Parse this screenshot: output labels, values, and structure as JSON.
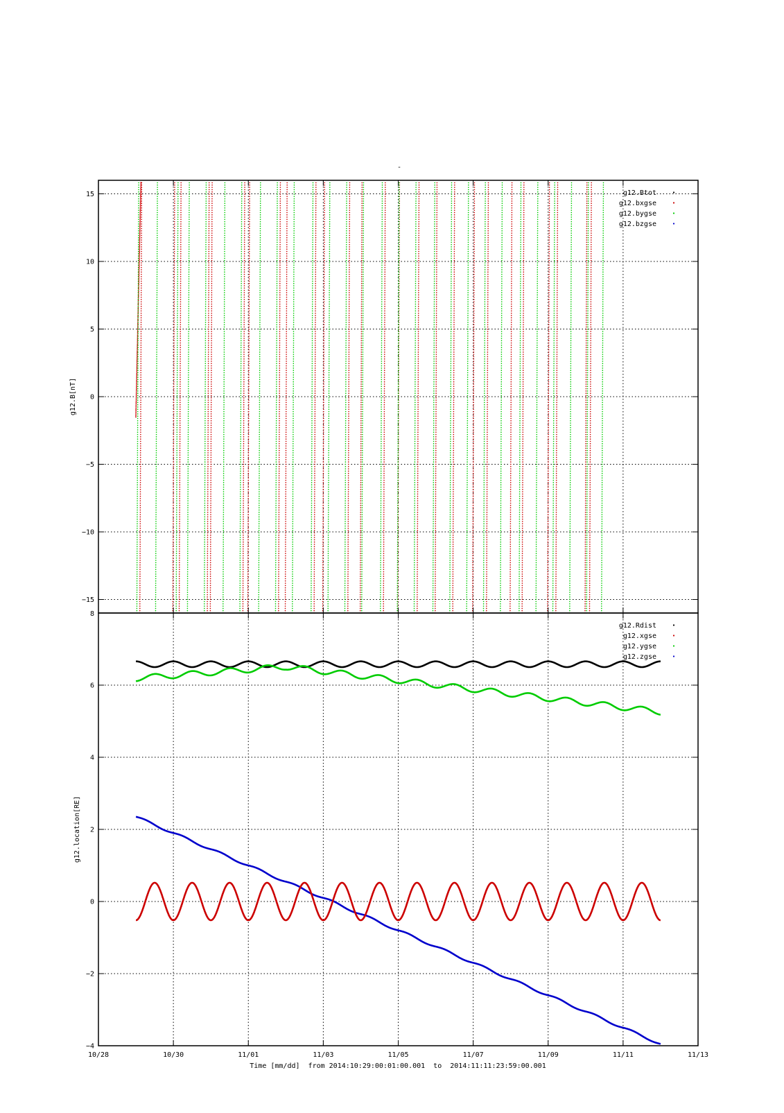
{
  "page": {
    "title": "-",
    "x_axis_caption": "Time [mm/dd]  from 2014:10:29:00:01:00.001  to  2014:11:11:23:59:00.001"
  },
  "chart_data": [
    {
      "type": "scatter",
      "ylabel": "g12.B[nT]",
      "xlabel": "",
      "ylim": [
        -16,
        16
      ],
      "yticks": [
        15,
        10,
        5,
        0,
        -5,
        -10,
        -15
      ],
      "ytick_labels": [
        "15",
        "10",
        "5",
        "0",
        "−5",
        "−10",
        "−15"
      ],
      "xlim": [
        "2014-10-28",
        "2014-11-13"
      ],
      "grid": true,
      "legend_position": "top-right",
      "series": [
        {
          "name": "g12.Btot",
          "color": "#000000"
        },
        {
          "name": "g12.bxgse",
          "color": "#cc0000"
        },
        {
          "name": "g12.bygse",
          "color": "#00cc00"
        },
        {
          "name": "g12.bzgse",
          "color": "#0000cc"
        }
      ],
      "red_ramp_crossings_day": [
        0.85,
        1.85,
        2.85,
        3.85,
        4.85,
        5.85,
        6.85,
        7.85,
        8.85,
        9.85,
        10.85,
        11.85,
        12.85
      ],
      "green_ramp_crossings_day": [
        1.05,
        1.55,
        2.1,
        2.4,
        2.85,
        3.35,
        3.8,
        4.3,
        4.75,
        5.2,
        5.7,
        6.15,
        6.6,
        7.05,
        7.55,
        8.0,
        8.45,
        8.95,
        9.4,
        9.85,
        10.3,
        10.75,
        11.25,
        11.7,
        12.15,
        12.6,
        13.05,
        13.45
      ]
    },
    {
      "type": "scatter",
      "ylabel": "g12.location[RE]",
      "xlabel": "Time [mm/dd]",
      "ylim": [
        -4,
        8
      ],
      "yticks": [
        8,
        6,
        4,
        2,
        0,
        -2,
        -4
      ],
      "ytick_labels": [
        "8",
        "6",
        "4",
        "2",
        "0",
        "−2",
        "−4"
      ],
      "xlim": [
        "2014-10-28",
        "2014-11-13"
      ],
      "xtick_labels": [
        "10/28",
        "10/30",
        "11/01",
        "11/03",
        "11/05",
        "11/07",
        "11/09",
        "11/11",
        "11/13"
      ],
      "grid": true,
      "legend_position": "top-right",
      "series": [
        {
          "name": "g12.Rdist",
          "color": "#000000",
          "model": "6.6 + 0.08*cos(2*pi*t)",
          "start": [
            "2014-10-29",
            6.65
          ],
          "end": [
            "2014-11-12",
            6.62
          ]
        },
        {
          "name": "g12.xgse",
          "color": "#cc0000",
          "model": "amplitude 0.52 sinusoid, period 1 day",
          "start": [
            "2014-10-29",
            -0.5
          ],
          "end": [
            "2014-11-12",
            -0.4
          ]
        },
        {
          "name": "g12.ygse",
          "color": "#00cc00",
          "model": "oscillating decline",
          "start": [
            "2014-10-29",
            6.25
          ],
          "end": [
            "2014-11-12",
            5.3
          ]
        },
        {
          "name": "g12.zgse",
          "color": "#0000cc",
          "model": "near-linear decline",
          "start": [
            "2014-10-29",
            2.35
          ],
          "end": [
            "2014-11-12",
            -3.95
          ]
        }
      ]
    }
  ]
}
